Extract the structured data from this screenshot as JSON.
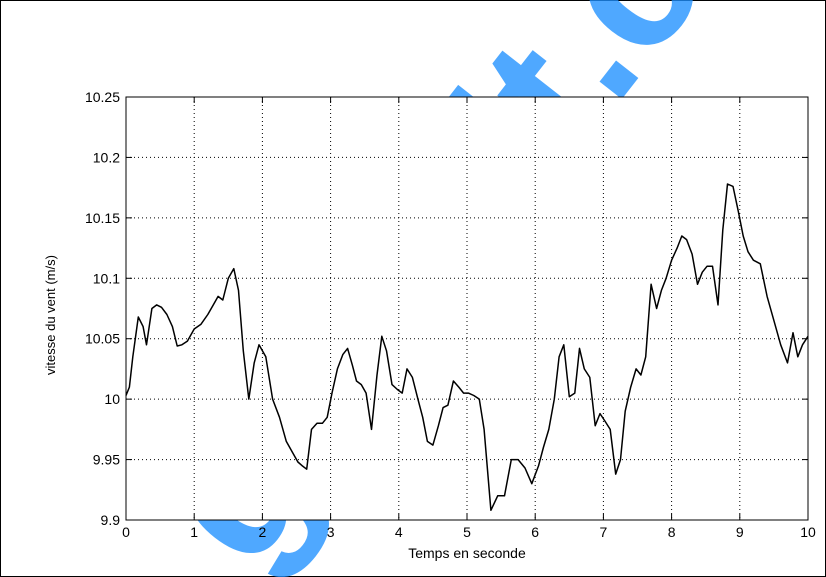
{
  "watermark": {
    "text": "gratuit.co",
    "color": "#1e90ff"
  },
  "chart_data": {
    "type": "line",
    "title": "",
    "xlabel": "Temps en seconde",
    "ylabel": "vitesse du vent (m/s)",
    "xlim": [
      0,
      10
    ],
    "ylim": [
      9.9,
      10.25
    ],
    "xticks": [
      "0",
      "1",
      "2",
      "3",
      "4",
      "5",
      "6",
      "7",
      "8",
      "9",
      "10"
    ],
    "yticks": [
      "9.9",
      "9.95",
      "10",
      "10.05",
      "10.1",
      "10.15",
      "10.2",
      "10.25"
    ],
    "grid": true,
    "line_color": "#000000",
    "series": [
      {
        "x": [
          0,
          0.05,
          0.1,
          0.18,
          0.25,
          0.3,
          0.38,
          0.45,
          0.52,
          0.6,
          0.68,
          0.75,
          0.82,
          0.9,
          1.0,
          1.1,
          1.2,
          1.28,
          1.35,
          1.42,
          1.5,
          1.58,
          1.65,
          1.72,
          1.8,
          1.88,
          1.95,
          2.05,
          2.15,
          2.25,
          2.35,
          2.45,
          2.52,
          2.58,
          2.65,
          2.72,
          2.8,
          2.88,
          2.95,
          3.02,
          3.1,
          3.18,
          3.25,
          3.32,
          3.38,
          3.45,
          3.52,
          3.6,
          3.68,
          3.75,
          3.82,
          3.9,
          3.98,
          4.05,
          4.12,
          4.2,
          4.28,
          4.35,
          4.42,
          4.5,
          4.58,
          4.65,
          4.72,
          4.8,
          4.88,
          4.95,
          5.02,
          5.1,
          5.18,
          5.25,
          5.35,
          5.45,
          5.55,
          5.65,
          5.75,
          5.85,
          5.95,
          6.05,
          6.12,
          6.2,
          6.28,
          6.35,
          6.42,
          6.5,
          6.58,
          6.65,
          6.72,
          6.8,
          6.88,
          6.95,
          7.02,
          7.1,
          7.18,
          7.25,
          7.32,
          7.4,
          7.48,
          7.55,
          7.62,
          7.7,
          7.78,
          7.85,
          7.92,
          8.0,
          8.08,
          8.15,
          8.22,
          8.3,
          8.38,
          8.45,
          8.52,
          8.6,
          8.68,
          8.75,
          8.82,
          8.9,
          8.98,
          9.05,
          9.12,
          9.2,
          9.3,
          9.4,
          9.5,
          9.6,
          9.7,
          9.78,
          9.85,
          9.92,
          10.0
        ],
        "y": [
          10.003,
          10.01,
          10.035,
          10.068,
          10.06,
          10.045,
          10.075,
          10.078,
          10.076,
          10.07,
          10.06,
          10.044,
          10.045,
          10.048,
          10.058,
          10.062,
          10.07,
          10.078,
          10.085,
          10.082,
          10.1,
          10.108,
          10.09,
          10.04,
          10.0,
          10.03,
          10.045,
          10.035,
          10.0,
          9.985,
          9.965,
          9.955,
          9.948,
          9.945,
          9.942,
          9.975,
          9.98,
          9.98,
          9.985,
          10.005,
          10.025,
          10.037,
          10.042,
          10.028,
          10.015,
          10.012,
          10.005,
          9.975,
          10.02,
          10.052,
          10.04,
          10.012,
          10.008,
          10.005,
          10.025,
          10.018,
          10.0,
          9.985,
          9.965,
          9.962,
          9.978,
          9.993,
          9.995,
          10.015,
          10.01,
          10.005,
          10.005,
          10.003,
          10.0,
          9.975,
          9.908,
          9.92,
          9.92,
          9.95,
          9.95,
          9.943,
          9.93,
          9.945,
          9.96,
          9.975,
          10.0,
          10.035,
          10.045,
          10.002,
          10.005,
          10.042,
          10.025,
          10.018,
          9.978,
          9.988,
          9.982,
          9.975,
          9.938,
          9.95,
          9.99,
          10.01,
          10.025,
          10.02,
          10.035,
          10.095,
          10.075,
          10.09,
          10.1,
          10.115,
          10.125,
          10.135,
          10.132,
          10.12,
          10.095,
          10.105,
          10.11,
          10.11,
          10.078,
          10.14,
          10.178,
          10.176,
          10.155,
          10.135,
          10.122,
          10.115,
          10.112,
          10.085,
          10.065,
          10.045,
          10.03,
          10.055,
          10.035,
          10.045,
          10.052
        ]
      }
    ]
  }
}
